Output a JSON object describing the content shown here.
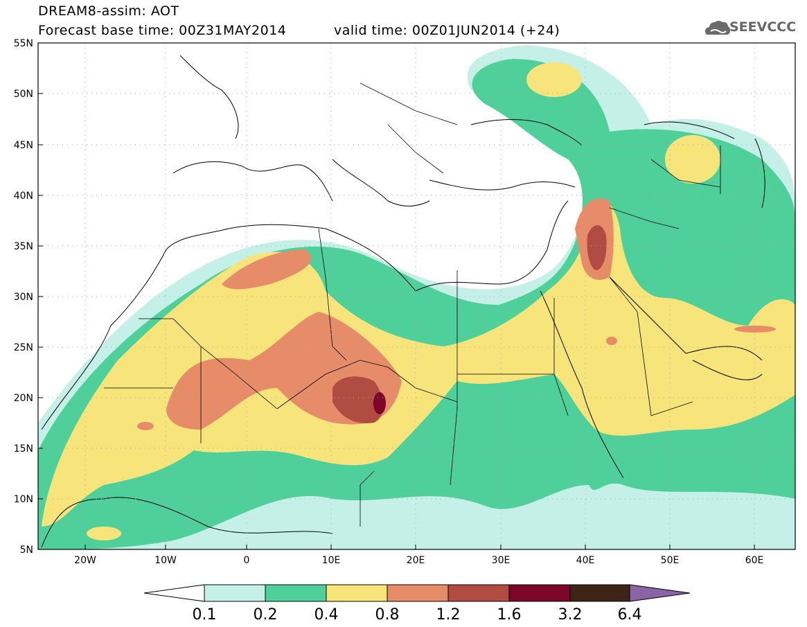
{
  "header": {
    "title": "DREAM8-assim: AOT",
    "base_time": "Forecast base time: 00Z31MAY2014",
    "valid_time": "valid time: 00Z01JUN2014 (+24)"
  },
  "logo": {
    "text": "SEEVCCC",
    "icon": "cloud-icon"
  },
  "map": {
    "lat_labels": [
      "55N",
      "50N",
      "45N",
      "40N",
      "35N",
      "30N",
      "25N",
      "20N",
      "15N",
      "10N",
      "5N"
    ],
    "lon_labels": [
      "20W",
      "10W",
      "0",
      "10E",
      "20E",
      "30E",
      "40E",
      "50E",
      "60E"
    ]
  },
  "colorbar": {
    "labels": [
      "0.1",
      "0.2",
      "0.4",
      "0.8",
      "1.2",
      "1.6",
      "3.2",
      "6.4"
    ],
    "colors": [
      "#ffffff",
      "#c4f0e8",
      "#4fcf9a",
      "#f7e47a",
      "#e68c68",
      "#b04c42",
      "#7c0628",
      "#3e2317",
      "#8a64a6"
    ]
  }
}
